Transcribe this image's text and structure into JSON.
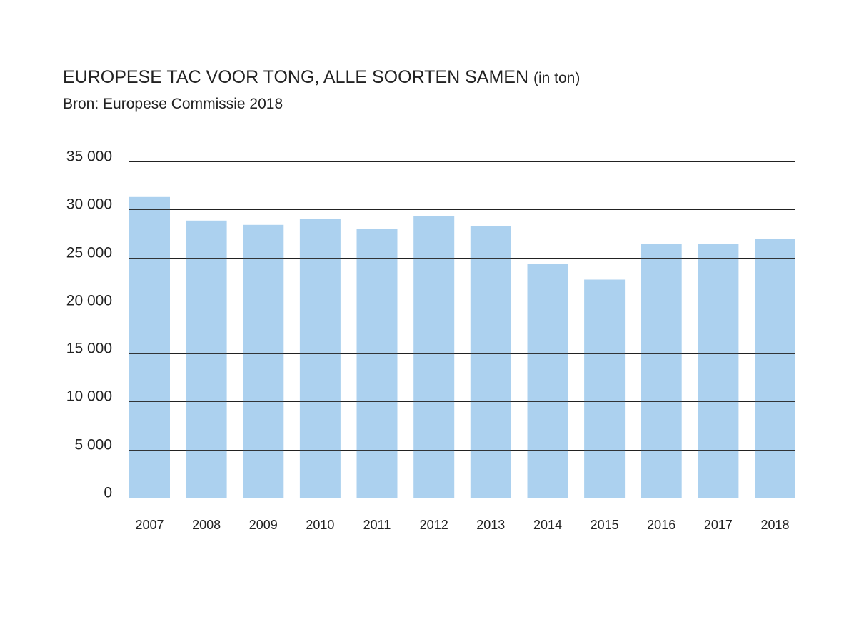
{
  "header": {
    "title": "EUROPESE TAC VOOR TONG, ALLE SOORTEN SAMEN",
    "unit": "(in ton)",
    "source": "Bron: Europese Commissie 2018"
  },
  "colors": {
    "bar": "#acd1ef",
    "grid": "#222222",
    "text": "#222222"
  },
  "chart_data": {
    "type": "bar",
    "title": "EUROPESE TAC VOOR TONG, ALLE SOORTEN SAMEN (in ton)",
    "subtitle": "Bron: Europese Commissie 2018",
    "xlabel": "",
    "ylabel": "",
    "categories": [
      "2007",
      "2008",
      "2009",
      "2010",
      "2011",
      "2012",
      "2013",
      "2014",
      "2015",
      "2016",
      "2017",
      "2018"
    ],
    "values": [
      31300,
      28850,
      28400,
      29050,
      27950,
      29300,
      28250,
      24350,
      22700,
      26450,
      26450,
      26900
    ],
    "ylim": [
      0,
      35000
    ],
    "yticks": [
      0,
      5000,
      10000,
      15000,
      20000,
      25000,
      30000,
      35000
    ],
    "ytick_labels": [
      "0",
      "5 000",
      "10 000",
      "15 000",
      "20 000",
      "25 000",
      "30 000",
      "35 000"
    ],
    "grid": true,
    "legend": "none"
  }
}
